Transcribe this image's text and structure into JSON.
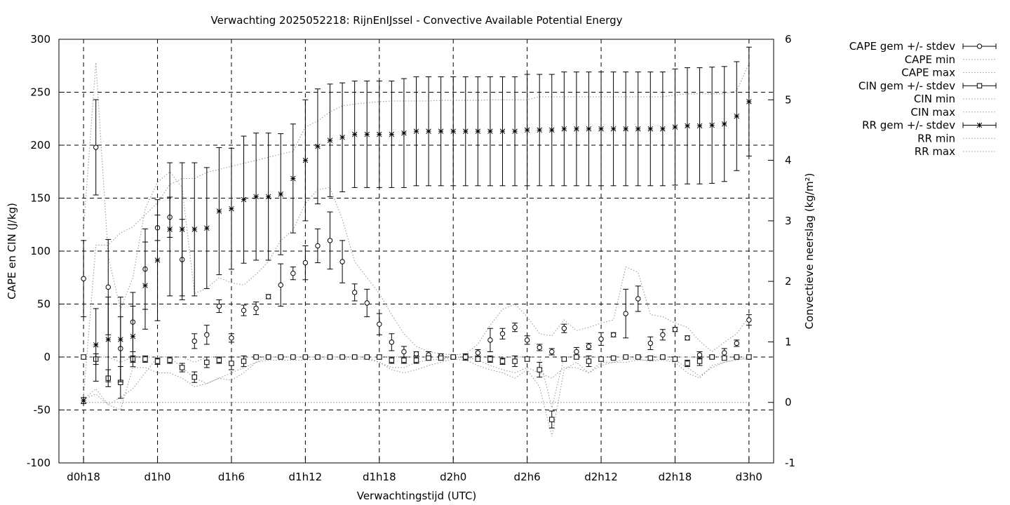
{
  "chart_data": {
    "type": "line",
    "title": "Verwachting 2025052218: RijnEnIJssel - Convective Available Potential Energy",
    "xlabel": "Verwachtingstijd (UTC)",
    "ylabel": "CAPE en CIN (J/kg)",
    "y2label": "Convectieve neerslag (kg/m²)",
    "ylim": [
      -100,
      300
    ],
    "y2lim": [
      -1,
      6
    ],
    "yticks": [
      -100,
      -50,
      0,
      50,
      100,
      150,
      200,
      250,
      300
    ],
    "y2ticks": [
      -1,
      0,
      1,
      2,
      3,
      4,
      5,
      6
    ],
    "xlim": [
      -2,
      56
    ],
    "xticks": [
      {
        "x": 0,
        "label": "d0h18"
      },
      {
        "x": 6,
        "label": "d1h0"
      },
      {
        "x": 12,
        "label": "d1h6"
      },
      {
        "x": 18,
        "label": "d1h12"
      },
      {
        "x": 24,
        "label": "d1h18"
      },
      {
        "x": 30,
        "label": "d2h0"
      },
      {
        "x": 36,
        "label": "d2h6"
      },
      {
        "x": 42,
        "label": "d2h12"
      },
      {
        "x": 48,
        "label": "d2h18"
      },
      {
        "x": 54,
        "label": "d3h0"
      }
    ],
    "grid": true,
    "legend_position": "right",
    "legend": [
      "CAPE gem +/- stdev",
      "CAPE min",
      "CAPE max",
      "CIN gem +/- stdev",
      "CIN min",
      "CIN max",
      "RR gem +/- stdev",
      "RR min",
      "RR max"
    ],
    "x": [
      0,
      1,
      2,
      3,
      4,
      5,
      6,
      7,
      8,
      9,
      10,
      11,
      12,
      13,
      14,
      15,
      16,
      17,
      18,
      19,
      20,
      21,
      22,
      23,
      24,
      25,
      26,
      27,
      28,
      29,
      30,
      31,
      32,
      33,
      34,
      35,
      36,
      37,
      38,
      39,
      40,
      41,
      42,
      43,
      44,
      45,
      46,
      47,
      48,
      49,
      50,
      51,
      52,
      53,
      54
    ],
    "series": [
      {
        "name": "CAPE gem +/- stdev",
        "axis": "y1",
        "marker": "circle",
        "values": [
          74,
          198,
          66,
          8,
          33,
          83,
          122,
          132,
          92,
          15,
          21,
          48,
          18,
          44,
          46,
          57,
          68,
          79,
          89,
          105,
          110,
          90,
          61,
          51,
          31,
          14,
          5,
          3,
          2,
          1,
          0,
          0,
          4,
          16,
          22,
          28,
          16,
          9,
          5,
          27,
          5,
          10,
          17,
          21,
          41,
          55,
          13,
          21,
          26,
          18,
          2,
          0,
          4,
          13,
          35
        ],
        "stdev": [
          36,
          45,
          45,
          30,
          28,
          38,
          12,
          19,
          38,
          7,
          9,
          6,
          4,
          5,
          6,
          2,
          20,
          6,
          16,
          16,
          27,
          20,
          8,
          13,
          10,
          8,
          5,
          2,
          3,
          2,
          2,
          3,
          3,
          11,
          5,
          4,
          4,
          3,
          3,
          4,
          4,
          3,
          6,
          2,
          23,
          12,
          6,
          5,
          2,
          2,
          3,
          2,
          4,
          3,
          5
        ]
      },
      {
        "name": "CAPE min",
        "axis": "y1",
        "style": "dotted",
        "values": [
          -40,
          -35,
          -45,
          -38,
          -30,
          -15,
          0,
          0,
          -10,
          -20,
          -25,
          -20,
          -15,
          -10,
          -5,
          0,
          0,
          0,
          0,
          0,
          0,
          0,
          0,
          0,
          -5,
          -10,
          -10,
          -5,
          -3,
          -2,
          -1,
          0,
          -3,
          -8,
          -12,
          -15,
          -10,
          -15,
          -20,
          -10,
          -10,
          -15,
          -5,
          -5,
          -5,
          -3,
          -3,
          -2,
          -3,
          -10,
          -18,
          -10,
          -5,
          -3,
          0
        ]
      },
      {
        "name": "CAPE max",
        "axis": "y1",
        "style": "dotted",
        "values": [
          120,
          278,
          95,
          45,
          75,
          140,
          165,
          175,
          160,
          60,
          65,
          75,
          70,
          68,
          78,
          90,
          110,
          120,
          145,
          158,
          160,
          130,
          90,
          75,
          60,
          40,
          22,
          10,
          5,
          3,
          2,
          3,
          12,
          30,
          45,
          50,
          38,
          22,
          20,
          35,
          25,
          28,
          32,
          35,
          85,
          80,
          40,
          38,
          32,
          28,
          15,
          5,
          14,
          22,
          38
        ]
      },
      {
        "name": "CIN gem +/- stdev",
        "axis": "y1",
        "marker": "square",
        "values": [
          0,
          -2,
          -20,
          -24,
          -2,
          -2,
          -4,
          -3,
          -10,
          -19,
          -5,
          -3,
          -6,
          -4,
          0,
          0,
          0,
          0,
          0,
          0,
          0,
          0,
          0,
          0,
          0,
          -3,
          -3,
          -3,
          -1,
          -1,
          0,
          0,
          -2,
          -2,
          -4,
          -4,
          -2,
          -12,
          -59,
          -2,
          0,
          -4,
          -2,
          -1,
          0,
          0,
          -1,
          0,
          -2,
          -6,
          -4,
          0,
          -1,
          0,
          0
        ],
        "stdev": [
          2,
          5,
          8,
          15,
          3,
          3,
          3,
          3,
          4,
          5,
          5,
          3,
          6,
          5,
          1,
          1,
          1,
          1,
          1,
          1,
          1,
          1,
          1,
          1,
          2,
          3,
          3,
          3,
          2,
          2,
          1,
          1,
          2,
          3,
          3,
          5,
          2,
          7,
          8,
          2,
          2,
          5,
          2,
          1,
          1,
          1,
          2,
          1,
          2,
          3,
          4,
          1,
          2,
          1,
          2
        ]
      },
      {
        "name": "CIN min",
        "axis": "y1",
        "style": "dotted",
        "values": [
          -40,
          -30,
          -45,
          -50,
          -10,
          -10,
          -15,
          -15,
          -20,
          -28,
          -25,
          -20,
          -22,
          -15,
          -5,
          -3,
          -3,
          -3,
          -3,
          -2,
          -2,
          -2,
          -2,
          -2,
          -5,
          -12,
          -15,
          -12,
          -8,
          -5,
          -2,
          -3,
          -8,
          -12,
          -15,
          -20,
          -12,
          -28,
          -75,
          -12,
          -5,
          -15,
          -8,
          -5,
          -2,
          -2,
          -4,
          -3,
          -5,
          -15,
          -20,
          -8,
          -5,
          -2,
          -2
        ]
      },
      {
        "name": "CIN max",
        "axis": "y1",
        "style": "dotted",
        "values": [
          0,
          0,
          0,
          -5,
          0,
          0,
          0,
          0,
          0,
          -5,
          0,
          0,
          0,
          0,
          0,
          0,
          0,
          0,
          0,
          0,
          0,
          0,
          0,
          0,
          0,
          0,
          0,
          0,
          0,
          0,
          0,
          0,
          0,
          0,
          0,
          0,
          0,
          0,
          -48,
          0,
          0,
          0,
          0,
          0,
          0,
          0,
          0,
          0,
          0,
          0,
          0,
          0,
          0,
          0,
          0
        ]
      },
      {
        "name": "RR gem +/- stdev",
        "axis": "y2",
        "marker": "star",
        "values": [
          0.03,
          0.95,
          1.04,
          1.04,
          1.09,
          1.93,
          2.35,
          2.86,
          2.86,
          2.86,
          2.88,
          3.16,
          3.2,
          3.35,
          3.4,
          3.4,
          3.44,
          3.7,
          4.0,
          4.23,
          4.33,
          4.38,
          4.43,
          4.43,
          4.43,
          4.43,
          4.45,
          4.48,
          4.48,
          4.48,
          4.48,
          4.48,
          4.48,
          4.48,
          4.48,
          4.48,
          4.5,
          4.5,
          4.5,
          4.52,
          4.52,
          4.52,
          4.52,
          4.52,
          4.52,
          4.52,
          4.52,
          4.52,
          4.55,
          4.57,
          4.57,
          4.58,
          4.6,
          4.73,
          4.97
        ],
        "stdev": [
          0.05,
          0.6,
          0.7,
          0.7,
          0.5,
          0.72,
          1.0,
          1.1,
          1.1,
          1.1,
          1.0,
          1.05,
          1.0,
          1.05,
          1.05,
          1.05,
          1.0,
          0.9,
          1.0,
          0.95,
          0.93,
          0.9,
          0.88,
          0.88,
          0.88,
          0.88,
          0.9,
          0.9,
          0.9,
          0.9,
          0.9,
          0.9,
          0.9,
          0.9,
          0.9,
          0.9,
          0.92,
          0.92,
          0.92,
          0.94,
          0.94,
          0.94,
          0.94,
          0.94,
          0.94,
          0.94,
          0.94,
          0.94,
          0.96,
          0.96,
          0.96,
          0.96,
          0.95,
          0.9,
          0.9
        ]
      },
      {
        "name": "RR min",
        "axis": "y2",
        "style": "dotted",
        "values": [
          0,
          0,
          0,
          0,
          0,
          0,
          0,
          0,
          0,
          0,
          0,
          0,
          0,
          0,
          0,
          0,
          0,
          0,
          0,
          0,
          0,
          0,
          0,
          0,
          0,
          0,
          0,
          0,
          0,
          0,
          0,
          0,
          0,
          0,
          0,
          0,
          0,
          0,
          0,
          0,
          0,
          0,
          0,
          0,
          0,
          0,
          0,
          0,
          0,
          0,
          0,
          0,
          0,
          0,
          0
        ]
      },
      {
        "name": "RR max",
        "axis": "y2",
        "style": "dotted",
        "values": [
          0.1,
          2.6,
          2.6,
          2.8,
          2.9,
          3.1,
          3.3,
          3.6,
          3.7,
          3.7,
          3.8,
          3.85,
          3.9,
          3.95,
          4.0,
          4.05,
          4.1,
          4.15,
          4.55,
          4.65,
          4.8,
          4.9,
          4.93,
          4.95,
          4.97,
          4.98,
          4.98,
          4.98,
          4.98,
          4.99,
          4.99,
          4.99,
          4.99,
          5.0,
          5.0,
          5.0,
          5.0,
          5.05,
          5.05,
          5.05,
          5.05,
          5.05,
          5.05,
          5.05,
          5.05,
          5.05,
          5.05,
          5.05,
          5.08,
          5.1,
          5.1,
          5.1,
          5.1,
          5.15,
          5.6
        ]
      }
    ]
  }
}
